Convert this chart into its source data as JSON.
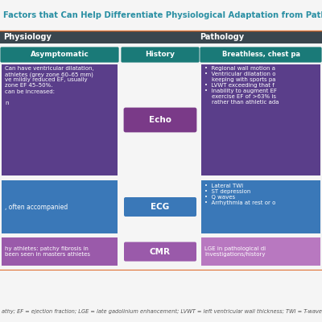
{
  "title": "Factors that Can Help Differentiate Physiological Adaptation from Pathological Change in Athletes",
  "title_color": "#2a8fa3",
  "title_fontsize": 7.2,
  "orange_line_color": "#e07030",
  "bg_color": "#f5f5f5",
  "header_bar_color": "#3a464e",
  "header_text_color": "#ffffff",
  "header_left": "Physiology",
  "header_right": "Pathology",
  "footer_text": "athy; EF = ejection fraction; LGE = late gadolinium enhancement; LVWT = left ventricular wall thickness; TWI = T-wave inversion",
  "footer_color": "#555555",
  "footer_fontsize": 4.8,
  "teal_color": "#1a7a78",
  "purple_color": "#5a3e8a",
  "blue_color": "#3a78b8",
  "mauve_color": "#9a5aaa",
  "echo_color": "#7a3a88",
  "ecg_label_color": "#3a78b8",
  "cmr_label_color": "#9a5aaa",
  "right_cmr_color": "#b878c0"
}
